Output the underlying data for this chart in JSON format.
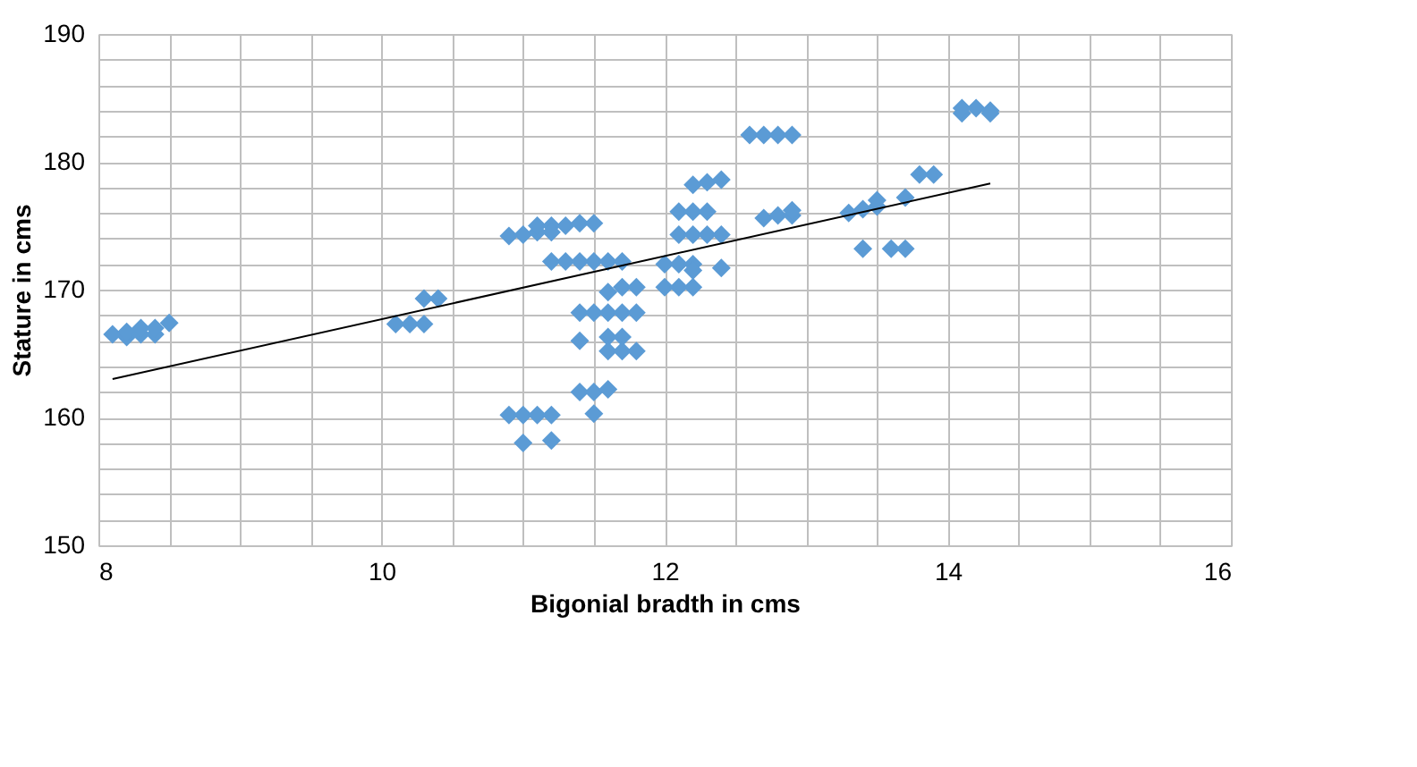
{
  "chart_data": {
    "type": "scatter",
    "xlabel": "Bigonial bradth in cms",
    "ylabel": "Stature in cms",
    "marker": "diamond",
    "grid": true,
    "xlim": [
      8,
      16
    ],
    "ylim": [
      150,
      190
    ],
    "xticks": [
      8,
      {
        "value": 8.5,
        "label": null
      },
      {
        "value": 9,
        "label": null
      },
      {
        "value": 9.5,
        "label": null
      },
      10,
      {
        "value": 10.5,
        "label": null
      },
      {
        "value": 11,
        "label": null
      },
      {
        "value": 11.5,
        "label": null
      },
      12,
      {
        "value": 12.5,
        "label": null
      },
      {
        "value": 13,
        "label": null
      },
      {
        "value": 13.5,
        "label": null
      },
      14,
      {
        "value": 14.5,
        "label": null
      },
      {
        "value": 15,
        "label": null
      },
      {
        "value": 15.5,
        "label": null
      },
      16
    ],
    "yticks": [
      150,
      {
        "value": 152,
        "label": null
      },
      {
        "value": 154,
        "label": null
      },
      {
        "value": 156,
        "label": null
      },
      {
        "value": 158,
        "label": null
      },
      160,
      {
        "value": 162,
        "label": null
      },
      {
        "value": 164,
        "label": null
      },
      {
        "value": 166,
        "label": null
      },
      {
        "value": 168,
        "label": null
      },
      170,
      {
        "value": 172,
        "label": null
      },
      {
        "value": 174,
        "label": null
      },
      {
        "value": 176,
        "label": null
      },
      {
        "value": 178,
        "label": null
      },
      180,
      {
        "value": 182,
        "label": null
      },
      {
        "value": 184,
        "label": null
      },
      {
        "value": 186,
        "label": null
      },
      {
        "value": 188,
        "label": null
      },
      190
    ],
    "series": [
      {
        "color": "#5b9bd5",
        "x": [
          8.1,
          8.2,
          8.2,
          8.3,
          8.3,
          8.4,
          8.4,
          8.5,
          10.1,
          10.2,
          10.3,
          10.3,
          10.4,
          10.9,
          11.0,
          11.1,
          11.1,
          11.2,
          11.2,
          11.3,
          11.4,
          11.5,
          11.2,
          11.3,
          11.4,
          11.5,
          11.6,
          11.7,
          11.6,
          11.7,
          11.8,
          11.4,
          11.5,
          11.6,
          11.7,
          11.8,
          11.4,
          11.6,
          11.7,
          11.6,
          11.7,
          11.8,
          11.4,
          11.5,
          11.6,
          11.5,
          10.9,
          11.0,
          11.1,
          11.2,
          11.0,
          11.2,
          12.0,
          12.1,
          12.2,
          12.0,
          12.1,
          12.2,
          12.2,
          12.4,
          12.1,
          12.2,
          12.3,
          12.4,
          12.1,
          12.2,
          12.3,
          12.2,
          12.3,
          12.4,
          12.6,
          12.7,
          12.8,
          12.9,
          12.7,
          12.8,
          12.9,
          12.9,
          13.3,
          13.4,
          13.5,
          13.5,
          13.4,
          13.6,
          13.7,
          13.7,
          13.8,
          13.9,
          14.1,
          14.2,
          14.3,
          14.1,
          14.3
        ],
        "values": [
          166.5,
          166.3,
          166.7,
          166.5,
          167.0,
          166.5,
          167.0,
          167.4,
          167.3,
          167.3,
          167.3,
          169.3,
          169.3,
          174.2,
          174.3,
          174.5,
          175.0,
          175.0,
          174.5,
          175.0,
          175.2,
          175.2,
          172.2,
          172.2,
          172.2,
          172.2,
          172.2,
          172.2,
          169.8,
          170.2,
          170.2,
          168.2,
          168.2,
          168.2,
          168.2,
          168.2,
          166.0,
          166.3,
          166.3,
          165.2,
          165.2,
          165.2,
          162.0,
          162.0,
          162.2,
          160.3,
          160.2,
          160.2,
          160.2,
          160.2,
          158.0,
          158.2,
          170.2,
          170.2,
          170.2,
          172.0,
          172.0,
          172.0,
          171.5,
          171.7,
          174.3,
          174.3,
          174.3,
          174.3,
          176.1,
          176.1,
          176.1,
          178.2,
          178.4,
          178.6,
          182.1,
          182.1,
          182.1,
          182.1,
          175.6,
          175.8,
          175.8,
          176.2,
          176.0,
          176.3,
          176.5,
          177.0,
          173.2,
          173.2,
          173.2,
          177.2,
          179.0,
          179.0,
          183.8,
          184.2,
          184.0,
          184.2,
          183.8
        ]
      },
      {
        "type": "line",
        "marker": "none",
        "color": "#000000",
        "x": [
          8.1,
          14.3
        ],
        "values": [
          163.0,
          178.3
        ]
      }
    ]
  }
}
